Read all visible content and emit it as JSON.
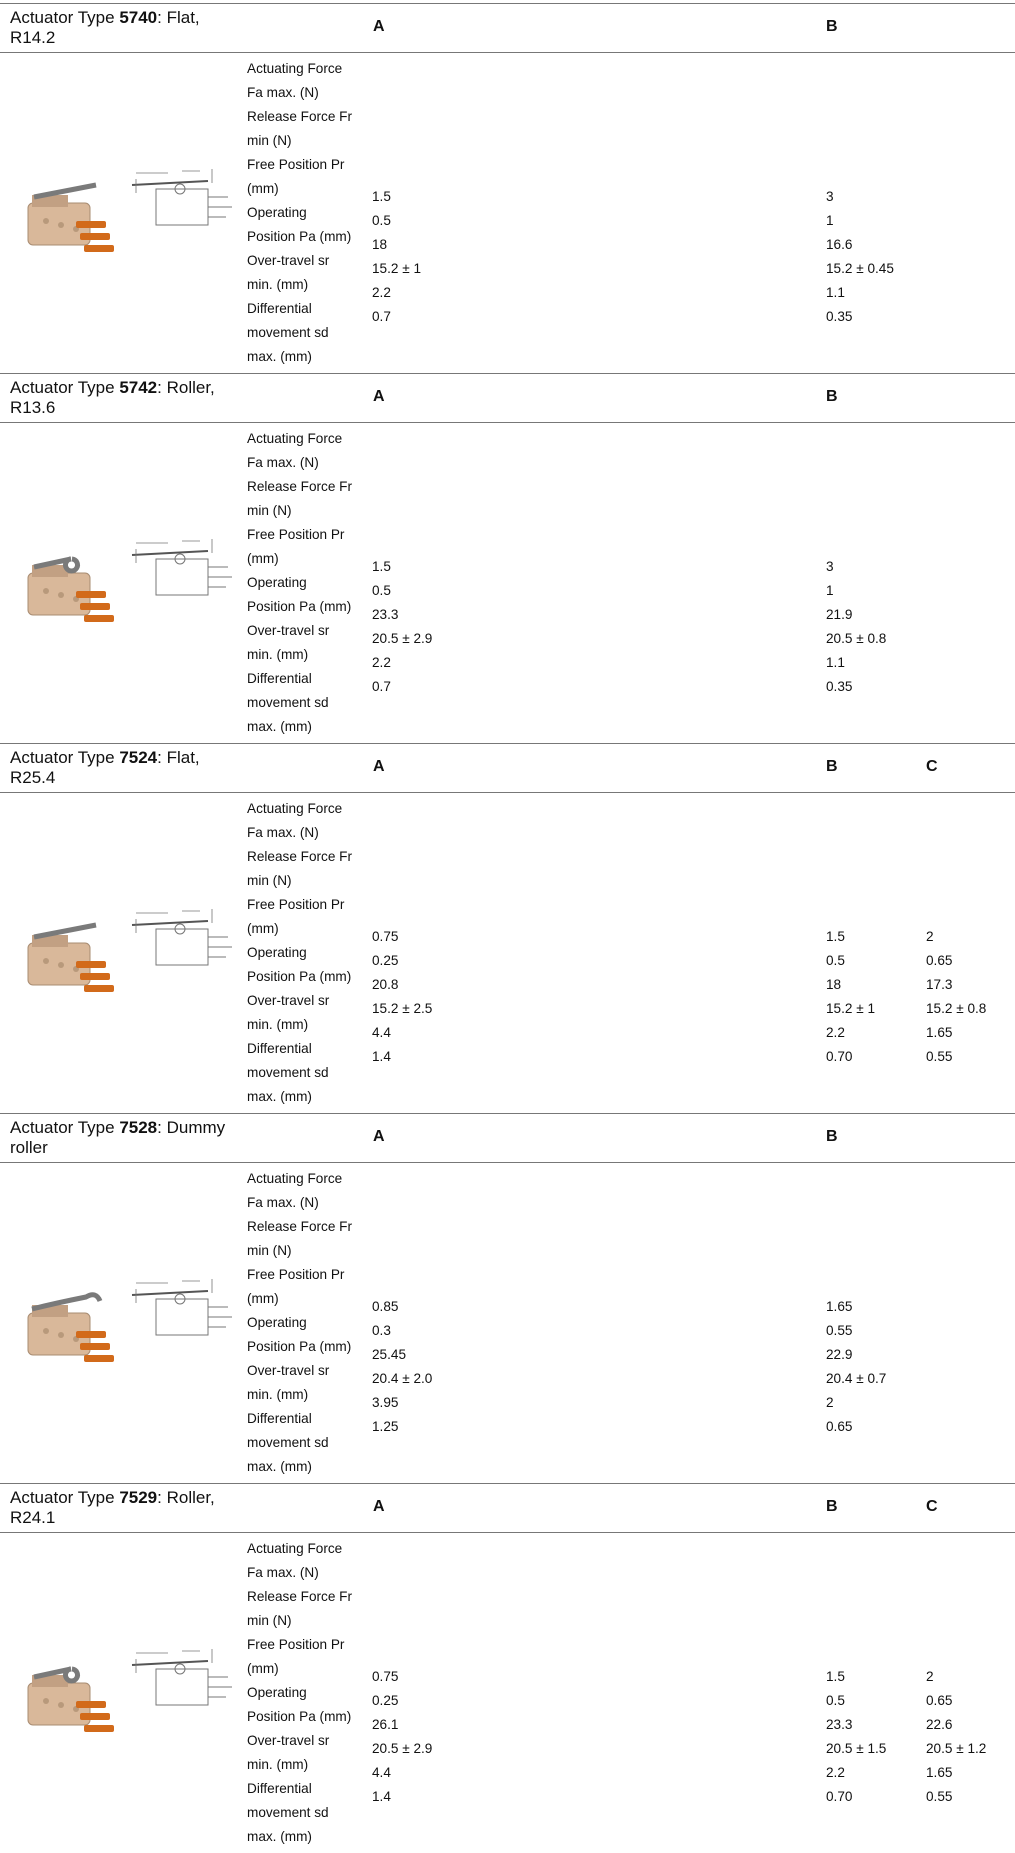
{
  "row_labels": [
    "Actuating Force",
    "Fa max. (N)",
    "Release Force Fr",
    "min (N)",
    "Free Position Pr",
    "(mm)",
    "Operating",
    "Position Pa (mm)",
    "Over-travel sr",
    "min. (mm)",
    "Differential",
    "movement sd",
    "max. (mm)"
  ],
  "columns": {
    "a": "A",
    "b": "B",
    "c": "C"
  },
  "sections": [
    {
      "prefix": "Actuator Type ",
      "code": "5740",
      "suffix": ": Flat,",
      "suffix2": "R14.2",
      "vals_a": [
        "1.5",
        "0.5",
        "18",
        "15.2 ± 1",
        "2.2",
        "0.7"
      ],
      "vals_b": [
        "3",
        "1",
        "16.6",
        "15.2 ± 0.45",
        "1.1",
        "0.35"
      ]
    },
    {
      "prefix": "Actuator Type ",
      "code": "5742",
      "suffix": ": Roller,",
      "suffix2": "R13.6",
      "vals_a": [
        "1.5",
        "0.5",
        "23.3",
        "20.5 ± 2.9",
        "2.2",
        "0.7"
      ],
      "vals_b": [
        "3",
        "1",
        "21.9",
        "20.5 ± 0.8",
        "1.1",
        "0.35"
      ]
    },
    {
      "prefix": "Actuator Type ",
      "code": "7524",
      "suffix": ": Flat,",
      "suffix2": "R25.4",
      "vals_a": [
        "0.75",
        "0.25",
        "20.8",
        "15.2 ± 2.5",
        "4.4",
        "1.4"
      ],
      "vals_b": [
        "1.5",
        "0.5",
        "18",
        "15.2 ± 1",
        "2.2",
        "0.70"
      ],
      "vals_c": [
        "2",
        "0.65",
        "17.3",
        "15.2 ± 0.8",
        "1.65",
        "0.55"
      ]
    },
    {
      "prefix": "Actuator Type ",
      "code": "7528",
      "suffix": ": Dummy",
      "suffix2": "roller",
      "vals_a": [
        "0.85",
        "0.3",
        "25.45",
        "20.4 ± 2.0",
        "3.95",
        "1.25"
      ],
      "vals_b": [
        "1.65",
        "0.55",
        "22.9",
        "20.4 ± 0.7",
        "2",
        "0.65"
      ]
    },
    {
      "prefix": "Actuator Type ",
      "code": "7529",
      "suffix": ": Roller,",
      "suffix2": "R24.1",
      "vals_a": [
        "0.75",
        "0.25",
        "26.1",
        "20.5 ± 2.9",
        "4.4",
        "1.4"
      ],
      "vals_b": [
        "1.5",
        "0.5",
        "23.3",
        "20.5 ± 1.5",
        "2.2",
        "0.70"
      ],
      "vals_c": [
        "2",
        "0.65",
        "22.6",
        "20.5 ± 1.2",
        "1.65",
        "0.55"
      ]
    }
  ],
  "icons": {
    "photo": "microswitch-photo",
    "drawing": "dimension-drawing"
  },
  "colors": {
    "switch_body": "#d9b89a",
    "terminal": "#d26a1a",
    "rule": "#777777"
  }
}
